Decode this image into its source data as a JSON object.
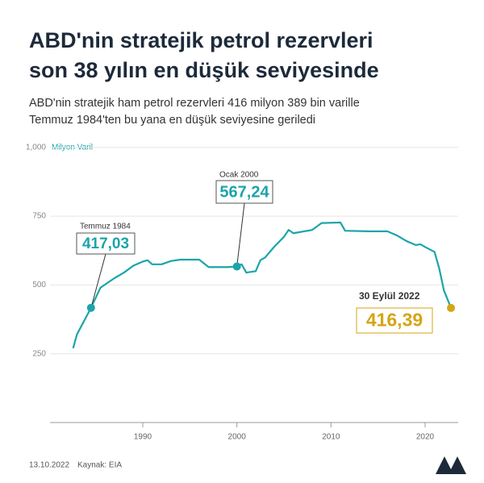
{
  "chart_data": {
    "type": "line",
    "title_lines": [
      "ABD'nin stratejik petrol rezervleri",
      "son 38 yılın en düşük seviyesinde"
    ],
    "subtitle_lines": [
      "ABD'nin stratejik ham petrol rezervleri 416 milyon 389 bin varille",
      "Temmuz 1984'ten bu yana en düşük seviyesine geriledi"
    ],
    "y_label": "Milyon Varil",
    "x": [
      1982.6,
      1983,
      1984.5,
      1985.5,
      1987,
      1988,
      1989,
      1990,
      1990.5,
      1991,
      1992,
      1993,
      1994,
      1996,
      1997,
      1999,
      2000,
      2000.5,
      2001,
      2002,
      2002.5,
      2003,
      2004,
      2005,
      2005.5,
      2006,
      2008,
      2009,
      2011,
      2011.5,
      2014,
      2016,
      2017,
      2018,
      2019,
      2019.5,
      2020,
      2021,
      2021.5,
      2022,
      2022.75
    ],
    "series": [
      {
        "color": "#1ca4aa",
        "values": [
          270,
          320,
          417.03,
          490,
          525,
          545,
          570,
          585,
          590,
          575,
          575,
          587,
          592,
          592,
          565,
          565,
          567.24,
          575,
          545,
          550,
          590,
          600,
          640,
          675,
          700,
          688,
          700,
          725,
          727,
          697,
          695,
          695,
          680,
          660,
          645,
          648,
          638,
          620,
          560,
          480,
          416.39
        ]
      }
    ],
    "xlim": [
      1981,
      2023
    ],
    "xticks": [
      1990,
      2000,
      2010,
      2020
    ],
    "ylim": [
      0,
      1000
    ],
    "yticks": [
      250,
      500,
      750,
      {
        "value": 1000,
        "label": "1,000"
      }
    ],
    "grid": true,
    "annotations": [
      {
        "x": 1984.5,
        "value": 417.03,
        "label": "Temmuz 1984",
        "value_label": "417,03",
        "color": "#1ca4aa"
      },
      {
        "x": 2000,
        "value": 567.24,
        "label": "Ocak 2000",
        "value_label": "567,24",
        "color": "#1ca4aa"
      },
      {
        "x": 2022.75,
        "value": 416.39,
        "label": "30 Eylül 2022",
        "value_label": "416,39",
        "color": "#d4a514"
      }
    ],
    "footer": {
      "date": "13.10.2022",
      "source": "Kaynak: EIA"
    }
  }
}
